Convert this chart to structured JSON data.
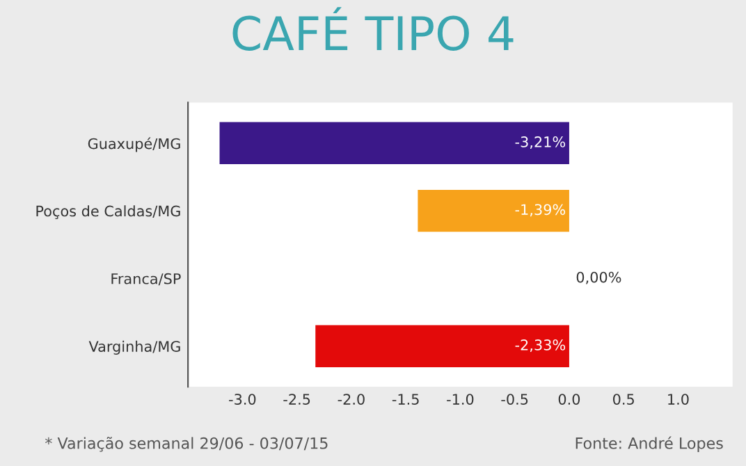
{
  "chart_data": {
    "type": "bar",
    "orientation": "horizontal",
    "title": "CAFÉ TIPO 4",
    "categories": [
      "Guaxupé/MG",
      "Poços de Caldas/MG",
      "Franca/SP",
      "Varginha/MG"
    ],
    "values": [
      -3.21,
      -1.39,
      0.0,
      -2.33
    ],
    "colors": [
      "#3b1889",
      "#f7a21b",
      "#9e9e9e",
      "#e30a0a"
    ],
    "value_labels": [
      "-3,21%",
      "-1,39%",
      "0,00%",
      "-2,33%"
    ],
    "xlim": [
      -3.5,
      1.5
    ],
    "xticks": [
      {
        "value": -3.0,
        "label": "-3.0"
      },
      {
        "value": -2.5,
        "label": "-2.5"
      },
      {
        "value": -2.0,
        "label": "-2.0"
      },
      {
        "value": -1.5,
        "label": "-1.5"
      },
      {
        "value": -1.0,
        "label": "-1.0"
      },
      {
        "value": -0.5,
        "label": "-0.5"
      },
      {
        "value": 0.0,
        "label": "0.0"
      },
      {
        "value": 0.5,
        "label": "0.5"
      },
      {
        "value": 1.0,
        "label": "1.0"
      }
    ],
    "grid": false,
    "legend": false,
    "annotations": [
      "* Variação semanal 29/06 - 03/07/15",
      "Fonte: André Lopes"
    ]
  }
}
